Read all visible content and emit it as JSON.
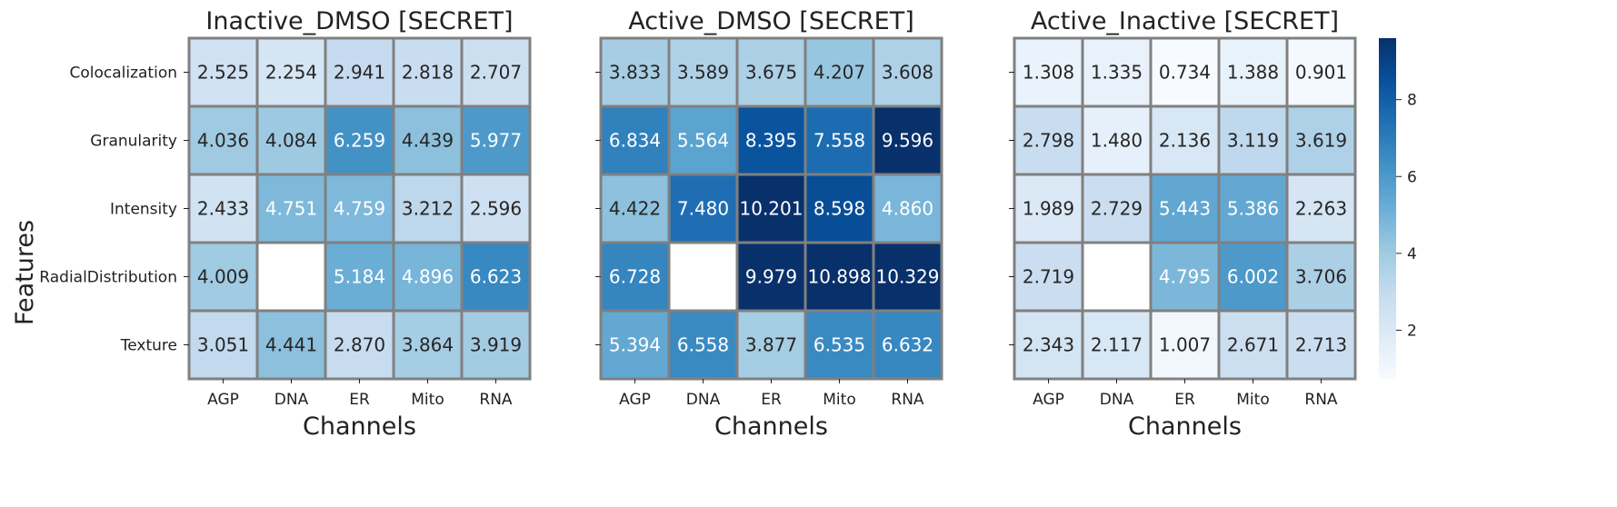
{
  "chart_data": {
    "type": "heatmap",
    "ylabel": "Features",
    "xlabel": "Channels",
    "rows": [
      "Colocalization",
      "Granularity",
      "Intensity",
      "RadialDistribution",
      "Texture"
    ],
    "columns": [
      "AGP",
      "DNA",
      "ER",
      "Mito",
      "RNA"
    ],
    "colormap": "Blues",
    "colorbar": {
      "vmin": 0.734,
      "vmax": 9.6,
      "ticks": [
        2,
        4,
        6,
        8
      ]
    },
    "panels": [
      {
        "title": "Inactive_DMSO [SECRET]",
        "values": [
          [
            "2.525",
            "2.254",
            "2.941",
            "2.818",
            "2.707"
          ],
          [
            "4.036",
            "4.084",
            "6.259",
            "4.439",
            "5.977"
          ],
          [
            "2.433",
            "4.751",
            "4.759",
            "3.212",
            "2.596"
          ],
          [
            "4.009",
            null,
            "5.184",
            "4.896",
            "6.623"
          ],
          [
            "3.051",
            "4.441",
            "2.870",
            "3.864",
            "3.919"
          ]
        ]
      },
      {
        "title": "Active_DMSO [SECRET]",
        "values": [
          [
            "3.833",
            "3.589",
            "3.675",
            "4.207",
            "3.608"
          ],
          [
            "6.834",
            "5.564",
            "8.395",
            "7.558",
            "9.596"
          ],
          [
            "4.422",
            "7.480",
            "10.201",
            "8.598",
            "4.860"
          ],
          [
            "6.728",
            null,
            "9.979",
            "10.898",
            "10.329"
          ],
          [
            "5.394",
            "6.558",
            "3.877",
            "6.535",
            "6.632"
          ]
        ]
      },
      {
        "title": "Active_Inactive [SECRET]",
        "values": [
          [
            "1.308",
            "1.335",
            "0.734",
            "1.388",
            "0.901"
          ],
          [
            "2.798",
            "1.480",
            "2.136",
            "3.119",
            "3.619"
          ],
          [
            "1.989",
            "2.729",
            "5.443",
            "5.386",
            "2.263"
          ],
          [
            "2.719",
            null,
            "4.795",
            "6.002",
            "3.706"
          ],
          [
            "2.343",
            "2.117",
            "1.007",
            "2.671",
            "2.713"
          ]
        ]
      }
    ]
  }
}
